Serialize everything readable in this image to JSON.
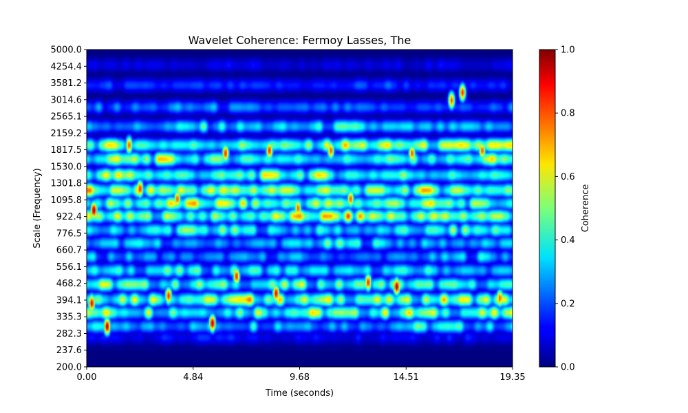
{
  "chart_data": {
    "type": "heatmap",
    "title": "Wavelet Coherence: Fermoy Lasses, The",
    "xlabel": "Time (seconds)",
    "ylabel": "Scale (Frequency)",
    "colorbar_label": "Coherence",
    "xlim": [
      0.0,
      19.35
    ],
    "ylim": [
      200.0,
      5000.0
    ],
    "y_scale": "log",
    "colormap": "jet",
    "x_ticks": [
      "0.00",
      "4.84",
      "9.68",
      "14.51",
      "19.35"
    ],
    "y_ticks": [
      "200.0",
      "237.6",
      "282.3",
      "335.3",
      "394.1",
      "468.2",
      "556.1",
      "660.7",
      "776.5",
      "922.4",
      "1095.8",
      "1301.8",
      "1530.0",
      "1817.5",
      "2159.2",
      "2565.1",
      "3014.6",
      "3581.2",
      "4254.4",
      "5000.0"
    ],
    "colorbar_range": [
      0.0,
      1.0
    ],
    "colorbar_ticks": [
      "0.0",
      "0.2",
      "0.4",
      "0.6",
      "0.8",
      "1.0"
    ],
    "bands": [
      {
        "scale": 244,
        "coherence": 0.02
      },
      {
        "scale": 268,
        "coherence": 0.15
      },
      {
        "scale": 300,
        "coherence": 0.35
      },
      {
        "scale": 345,
        "coherence": 0.5
      },
      {
        "scale": 394,
        "coherence": 0.55
      },
      {
        "scale": 460,
        "coherence": 0.45
      },
      {
        "scale": 530,
        "coherence": 0.4
      },
      {
        "scale": 610,
        "coherence": 0.3
      },
      {
        "scale": 700,
        "coherence": 0.35
      },
      {
        "scale": 800,
        "coherence": 0.4
      },
      {
        "scale": 922,
        "coherence": 0.55
      },
      {
        "scale": 1050,
        "coherence": 0.5
      },
      {
        "scale": 1200,
        "coherence": 0.55
      },
      {
        "scale": 1400,
        "coherence": 0.5
      },
      {
        "scale": 1650,
        "coherence": 0.5
      },
      {
        "scale": 1900,
        "coherence": 0.55
      },
      {
        "scale": 2300,
        "coherence": 0.35
      },
      {
        "scale": 2800,
        "coherence": 0.25
      },
      {
        "scale": 3500,
        "coherence": 0.2
      },
      {
        "scale": 4300,
        "coherence": 0.12
      }
    ],
    "hotspots": [
      {
        "t": 0.3,
        "scale": 980,
        "coherence": 0.98
      },
      {
        "t": 0.2,
        "scale": 380,
        "coherence": 0.9
      },
      {
        "t": 0.9,
        "scale": 300,
        "coherence": 0.95
      },
      {
        "t": 1.9,
        "scale": 1900,
        "coherence": 0.8
      },
      {
        "t": 2.4,
        "scale": 1220,
        "coherence": 0.85
      },
      {
        "t": 3.7,
        "scale": 410,
        "coherence": 0.85
      },
      {
        "t": 4.1,
        "scale": 1100,
        "coherence": 0.8
      },
      {
        "t": 5.7,
        "scale": 310,
        "coherence": 0.95
      },
      {
        "t": 6.3,
        "scale": 1750,
        "coherence": 0.85
      },
      {
        "t": 6.8,
        "scale": 500,
        "coherence": 0.85
      },
      {
        "t": 8.3,
        "scale": 1800,
        "coherence": 0.85
      },
      {
        "t": 8.6,
        "scale": 420,
        "coherence": 0.9
      },
      {
        "t": 9.6,
        "scale": 1000,
        "coherence": 0.8
      },
      {
        "t": 11.1,
        "scale": 1800,
        "coherence": 0.8
      },
      {
        "t": 12.0,
        "scale": 1100,
        "coherence": 0.8
      },
      {
        "t": 12.8,
        "scale": 470,
        "coherence": 0.85
      },
      {
        "t": 14.1,
        "scale": 450,
        "coherence": 0.95
      },
      {
        "t": 14.8,
        "scale": 1750,
        "coherence": 0.8
      },
      {
        "t": 16.6,
        "scale": 3000,
        "coherence": 0.8
      },
      {
        "t": 17.1,
        "scale": 3250,
        "coherence": 0.85
      },
      {
        "t": 18.0,
        "scale": 1800,
        "coherence": 0.8
      },
      {
        "t": 18.8,
        "scale": 400,
        "coherence": 0.8
      }
    ]
  }
}
